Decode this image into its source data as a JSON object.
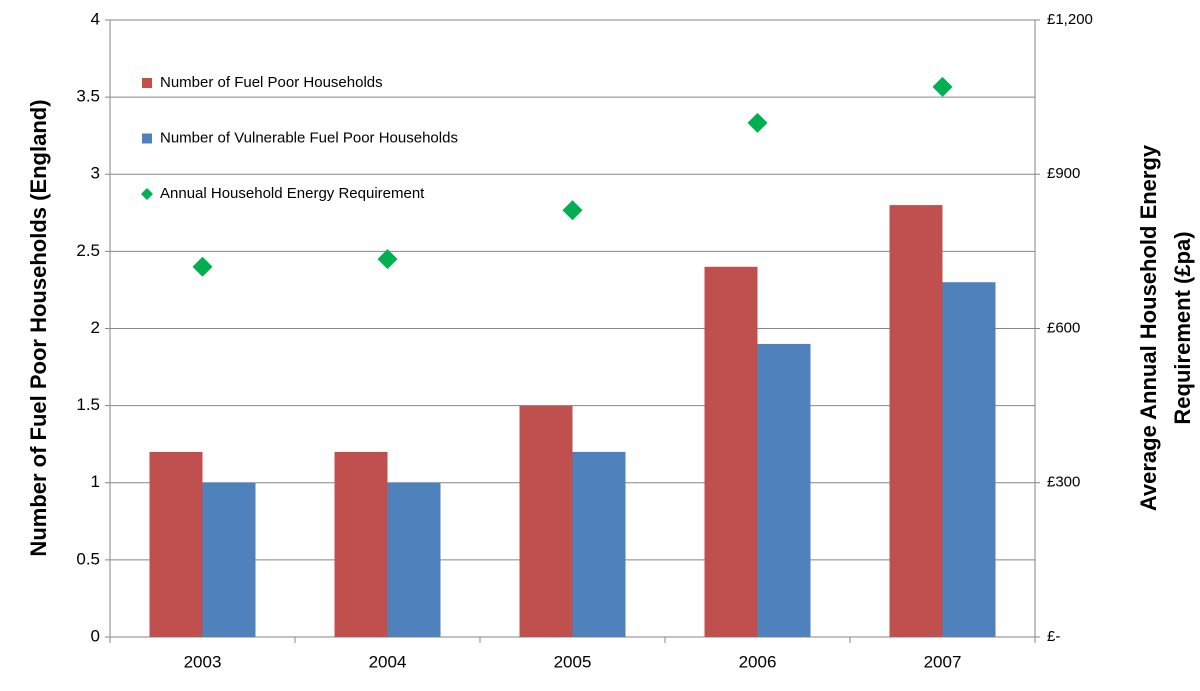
{
  "chart_data": {
    "type": "bar",
    "categories": [
      "2003",
      "2004",
      "2005",
      "2006",
      "2007"
    ],
    "series": [
      {
        "name": "Number of Fuel Poor Households",
        "color": "#c0504d",
        "type": "bar",
        "values": [
          1.2,
          1.2,
          1.5,
          2.4,
          2.8
        ]
      },
      {
        "name": "Number of Vulnerable Fuel Poor Households",
        "color": "#4f81bd",
        "type": "bar",
        "values": [
          1.0,
          1.0,
          1.2,
          1.9,
          2.3
        ]
      },
      {
        "name": "Annual Household Energy Requirement",
        "color": "#00b050",
        "type": "scatter",
        "axis": "y2",
        "values": [
          720,
          735,
          830,
          1000,
          1070
        ]
      }
    ],
    "ylabel": "Number of Fuel Poor Households (England)",
    "y2label": [
      "Average Annual Household Energy",
      "Requirement (£pa)"
    ],
    "ylim": [
      0,
      4
    ],
    "yticks": [
      0,
      0.5,
      1,
      1.5,
      2,
      2.5,
      3,
      3.5,
      4
    ],
    "y2lim": [
      0,
      1200
    ],
    "y2ticks": [
      {
        "value": 0,
        "label": "£-"
      },
      {
        "value": 300,
        "label": "£300"
      },
      {
        "value": 600,
        "label": "£600"
      },
      {
        "value": 900,
        "label": "£900"
      },
      {
        "value": 1200,
        "label": "£1,200"
      }
    ],
    "grid": true,
    "legend": "top-left"
  }
}
